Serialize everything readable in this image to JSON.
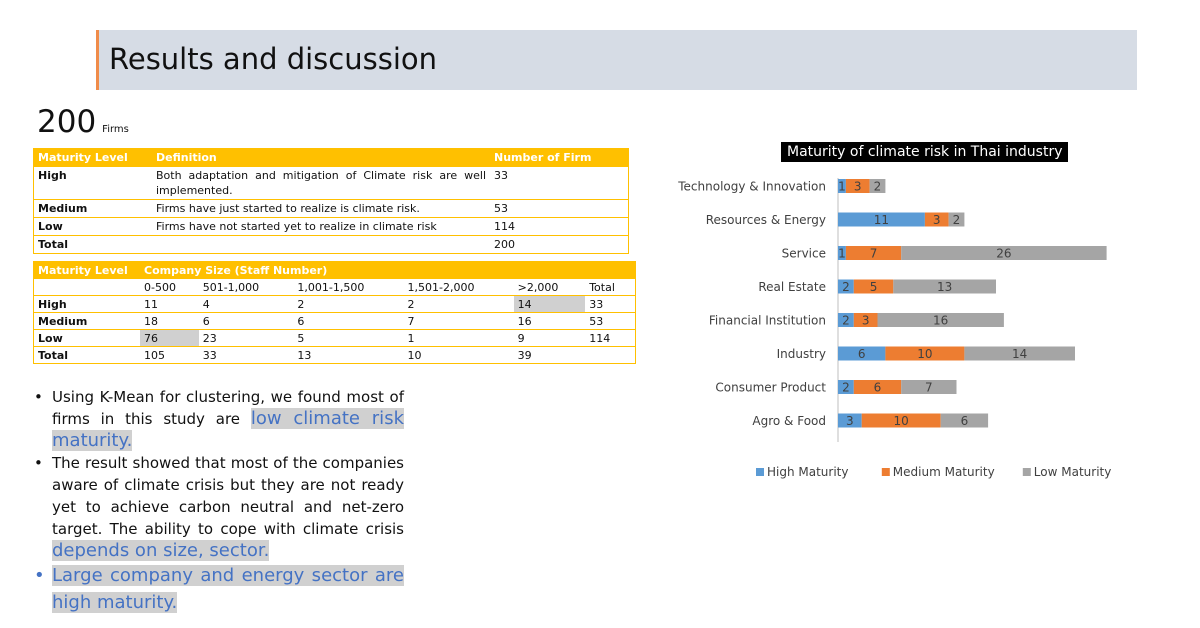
{
  "slide": {
    "title": "Results and discussion"
  },
  "firms": {
    "count": "200",
    "unit": "Firms"
  },
  "table1": {
    "headers": [
      "Maturity Level",
      "Definition",
      "Number of Firm"
    ],
    "rows": [
      {
        "level": "High",
        "definition": "Both adaptation and mitigation of Climate risk are well implemented.",
        "count": "33"
      },
      {
        "level": "Medium",
        "definition": "Firms have just started to realize is climate risk.",
        "count": "53"
      },
      {
        "level": "Low",
        "definition": "Firms have not started yet to realize in climate risk",
        "count": "114"
      },
      {
        "level": "Total",
        "definition": "",
        "count": "200"
      }
    ]
  },
  "table2": {
    "headers": [
      "Maturity Level",
      "Company Size (Staff Number)"
    ],
    "subheaders": [
      "0-500",
      "501-1,000",
      "1,001-1,500",
      "1,501-2,000",
      ">2,000",
      "Total"
    ],
    "rows": [
      {
        "level": "High",
        "cells": [
          "11",
          "4",
          "2",
          "2",
          "14",
          "33"
        ]
      },
      {
        "level": "Medium",
        "cells": [
          "18",
          "6",
          "6",
          "7",
          "16",
          "53"
        ]
      },
      {
        "level": "Low",
        "cells": [
          "76",
          "23",
          "5",
          "1",
          "9",
          "114"
        ]
      },
      {
        "level": "Total",
        "cells": [
          "105",
          "33",
          "13",
          "10",
          "39",
          ""
        ]
      }
    ]
  },
  "bullets": {
    "b1_text": "Using K-Mean for clustering, we found most of firms in this study are ",
    "b1_mark": "low climate risk maturity.",
    "b2_text": "The result showed that most of the companies aware of climate crisis but they are not ready yet to achieve carbon neutral and net-zero target. The ability to cope with climate crisis ",
    "b2_mark": "depends on size, sector.",
    "b3_mark": "Large company and energy sector are high maturity."
  },
  "colors": {
    "high": "#5b9bd5",
    "medium": "#ed7d31",
    "low": "#a5a5a5",
    "accent": "#ffc000"
  },
  "chart_data": {
    "type": "bar",
    "orientation": "horizontal",
    "stacked": true,
    "title": "Maturity of climate risk in Thai industry",
    "categories": [
      "Technology & Innovation",
      "Resources & Energy",
      "Service",
      "Real Estate",
      "Financial Institution",
      "Industry",
      "Consumer Product",
      "Agro & Food"
    ],
    "series": [
      {
        "name": "High Maturity",
        "values": [
          1,
          11,
          1,
          2,
          2,
          6,
          2,
          3
        ]
      },
      {
        "name": "Medium Maturity",
        "values": [
          3,
          3,
          7,
          5,
          3,
          10,
          6,
          10
        ]
      },
      {
        "name": "Low Maturity",
        "values": [
          2,
          2,
          26,
          13,
          16,
          14,
          7,
          6
        ]
      }
    ],
    "legend": "bottom"
  }
}
